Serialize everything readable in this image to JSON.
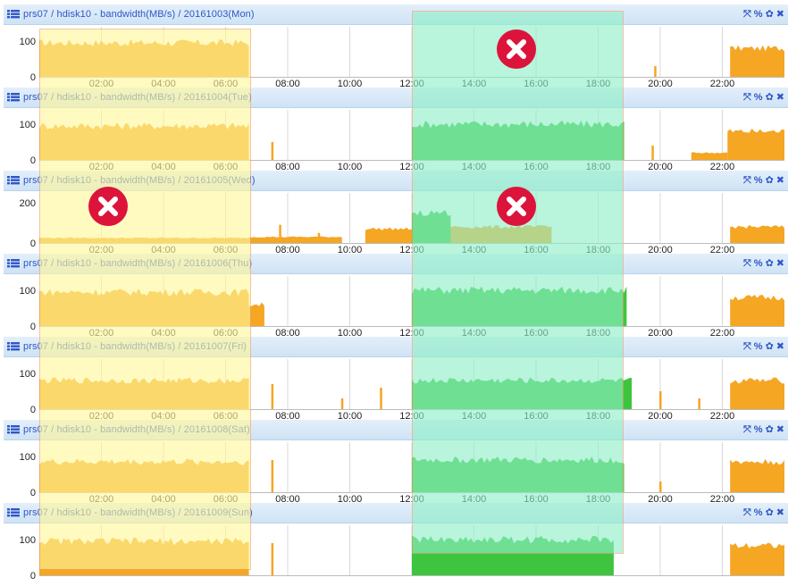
{
  "colors": {
    "orange": "#f5a623",
    "green": "#3ec43e",
    "grid": "#d9d9d9",
    "yellow_zone": "#fff79a",
    "teal_zone": "#8ef0c8",
    "mark_red": "#dc143c"
  },
  "icons": {
    "panel": "bar-list-icon",
    "tools": [
      "expand-icon",
      "link-icon",
      "paw-icon",
      "close-icon"
    ]
  },
  "tools_glyphs": [
    "⤧",
    "%",
    "✿",
    "✖"
  ],
  "overlays": [
    {
      "name": "yellow-zone",
      "x_start": "00:00",
      "x_end": "06:45"
    },
    {
      "name": "teal-zone",
      "x_start": "12:00",
      "x_end": "18:45"
    }
  ],
  "marks": [
    {
      "panel": 0,
      "zone": "teal"
    },
    {
      "panel": 2,
      "zone": "yellow"
    },
    {
      "panel": 2,
      "zone": "teal"
    }
  ],
  "chart_data": [
    {
      "type": "area",
      "title": "prs07 / hdisk10 - bandwidth(MB/s) / 20161003(Mon)",
      "ylim": [
        0,
        130
      ],
      "yticks": [
        0,
        100
      ],
      "xticks": [
        "02:00",
        "04:00",
        "06:00",
        "08:00",
        "10:00",
        "12:00",
        "14:00",
        "16:00",
        "18:00",
        "20:00",
        "22:00"
      ],
      "xlim": [
        "00:00",
        "24:00"
      ],
      "series": [
        {
          "color": "orange",
          "segments": [
            [
              "00:00",
              "06:45",
              95
            ],
            [
              "22:15",
              "24:00",
              80
            ]
          ],
          "spikes": [
            [
              "19:50",
              30
            ]
          ]
        }
      ]
    },
    {
      "type": "area",
      "title": "prs07 / hdisk10 - bandwidth(MB/s) / 20161004(Tue)",
      "ylim": [
        0,
        130
      ],
      "yticks": [
        0,
        100
      ],
      "xticks": [
        "02:00",
        "04:00",
        "06:00",
        "08:00",
        "10:00",
        "12:00",
        "14:00",
        "16:00",
        "18:00",
        "20:00",
        "22:00"
      ],
      "xlim": [
        "00:00",
        "24:00"
      ],
      "series": [
        {
          "color": "orange",
          "segments": [
            [
              "00:00",
              "06:45",
              95
            ],
            [
              "21:00",
              "22:10",
              20
            ],
            [
              "22:10",
              "24:00",
              80
            ]
          ],
          "spikes": [
            [
              "07:30",
              50
            ],
            [
              "19:45",
              40
            ]
          ]
        },
        {
          "color": "green",
          "segments": [
            [
              "12:00",
              "18:50",
              100
            ]
          ],
          "spikes": []
        }
      ]
    },
    {
      "type": "area",
      "title": "prs07 / hdisk10 - bandwidth(MB/s) / 20161005(Wed)",
      "ylim": [
        0,
        230
      ],
      "yticks": [
        0,
        200
      ],
      "xticks": [
        "02:00",
        "04:00",
        "06:00",
        "08:00",
        "10:00",
        "12:00",
        "14:00",
        "16:00",
        "18:00",
        "20:00",
        "22:00"
      ],
      "xlim": [
        "00:00",
        "24:00"
      ],
      "series": [
        {
          "color": "orange",
          "segments": [
            [
              "00:00",
              "06:45",
              25
            ],
            [
              "06:45",
              "09:45",
              30
            ],
            [
              "10:30",
              "12:00",
              70
            ],
            [
              "12:00",
              "16:30",
              80
            ],
            [
              "22:15",
              "24:00",
              80
            ]
          ],
          "spikes": [
            [
              "07:45",
              90
            ],
            [
              "09:00",
              50
            ]
          ]
        },
        {
          "color": "green",
          "segments": [
            [
              "12:00",
              "13:15",
              150
            ]
          ],
          "spikes": []
        }
      ]
    },
    {
      "type": "area",
      "title": "prs07 / hdisk10 - bandwidth(MB/s) / 20161006(Thu)",
      "ylim": [
        0,
        130
      ],
      "yticks": [
        0,
        100
      ],
      "xticks": [
        "02:00",
        "04:00",
        "06:00",
        "08:00",
        "10:00",
        "12:00",
        "14:00",
        "16:00",
        "18:00",
        "20:00",
        "22:00"
      ],
      "xlim": [
        "00:00",
        "24:00"
      ],
      "series": [
        {
          "color": "orange",
          "segments": [
            [
              "00:00",
              "06:45",
              95
            ],
            [
              "06:45",
              "07:15",
              60
            ],
            [
              "22:15",
              "24:00",
              80
            ]
          ],
          "spikes": []
        },
        {
          "color": "green",
          "segments": [
            [
              "12:00",
              "18:55",
              100
            ]
          ],
          "spikes": []
        }
      ]
    },
    {
      "type": "area",
      "title": "prs07 / hdisk10 - bandwidth(MB/s) / 20161007(Fri)",
      "ylim": [
        0,
        130
      ],
      "yticks": [
        0,
        100
      ],
      "xticks": [
        "02:00",
        "04:00",
        "06:00",
        "08:00",
        "10:00",
        "12:00",
        "14:00",
        "16:00",
        "18:00",
        "20:00",
        "22:00"
      ],
      "xlim": [
        "00:00",
        "24:00"
      ],
      "series": [
        {
          "color": "orange",
          "segments": [
            [
              "00:00",
              "06:45",
              80
            ],
            [
              "22:15",
              "24:00",
              80
            ]
          ],
          "spikes": [
            [
              "07:30",
              70
            ],
            [
              "09:45",
              30
            ],
            [
              "11:00",
              60
            ],
            [
              "20:00",
              50
            ],
            [
              "21:15",
              30
            ]
          ]
        },
        {
          "color": "green",
          "segments": [
            [
              "12:00",
              "19:05",
              80
            ]
          ],
          "spikes": []
        }
      ]
    },
    {
      "type": "area",
      "title": "prs07 / hdisk10 - bandwidth(MB/s) / 20161008(Sat)",
      "ylim": [
        0,
        130
      ],
      "yticks": [
        0,
        100
      ],
      "xticks": [
        "02:00",
        "04:00",
        "06:00",
        "08:00",
        "10:00",
        "12:00",
        "14:00",
        "16:00",
        "18:00",
        "20:00",
        "22:00"
      ],
      "xlim": [
        "00:00",
        "24:00"
      ],
      "series": [
        {
          "color": "orange",
          "segments": [
            [
              "00:00",
              "06:45",
              85
            ],
            [
              "22:15",
              "24:00",
              85
            ]
          ],
          "spikes": [
            [
              "07:30",
              90
            ],
            [
              "20:00",
              30
            ]
          ]
        },
        {
          "color": "green",
          "segments": [
            [
              "12:00",
              "18:50",
              90
            ]
          ],
          "spikes": []
        }
      ]
    },
    {
      "type": "area",
      "title": "prs07 / hdisk10 - bandwidth(MB/s) / 20161009(Sun)",
      "ylim": [
        0,
        130
      ],
      "yticks": [
        0,
        100
      ],
      "xticks": [],
      "xlim": [
        "00:00",
        "24:00"
      ],
      "series": [
        {
          "color": "orange",
          "segments": [
            [
              "00:00",
              "06:45",
              95
            ],
            [
              "22:15",
              "24:00",
              85
            ]
          ],
          "spikes": [
            [
              "07:30",
              90
            ]
          ]
        },
        {
          "color": "green",
          "segments": [
            [
              "12:00",
              "18:30",
              100
            ]
          ],
          "spikes": []
        }
      ]
    }
  ]
}
